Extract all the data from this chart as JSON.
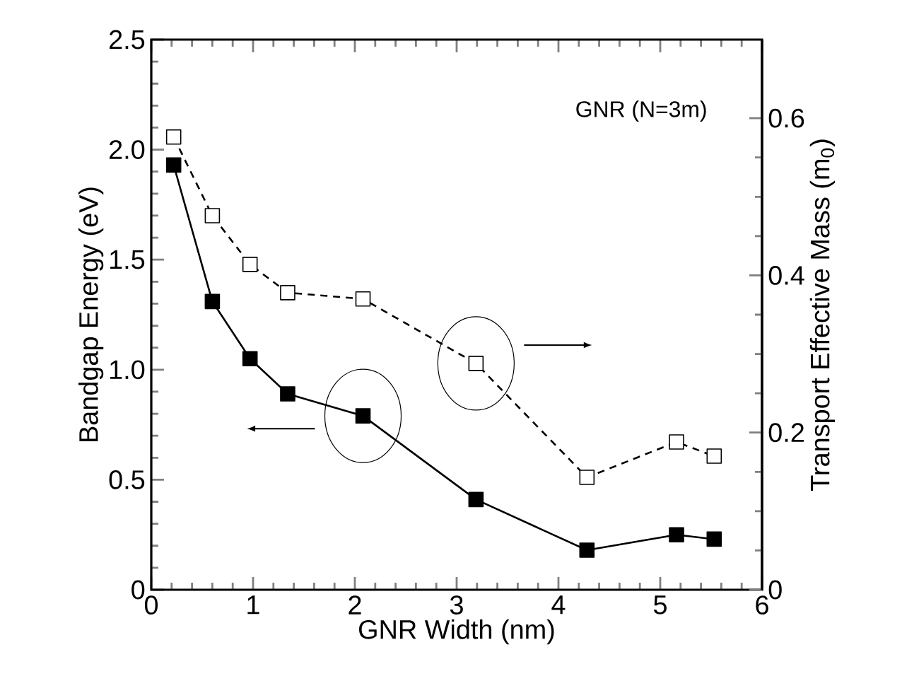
{
  "chart_data": {
    "type": "line",
    "xlabel": "GNR Width (nm)",
    "ylabel": "Bandgap Energy (eV)",
    "y2label": "Transport Effective Mass (m$_{0}$)",
    "annotations": [
      "GNR (N=3m)"
    ],
    "xlim": [
      0,
      6
    ],
    "xticks": [
      0,
      1,
      2,
      3,
      4,
      5,
      6
    ],
    "ylim": [
      0,
      2.5
    ],
    "yticks": [
      0,
      {
        "value": 0.5,
        "label": "0.5"
      },
      {
        "value": 1,
        "label": "1.0"
      },
      {
        "value": 1.5,
        "label": "1.5"
      },
      {
        "value": 2,
        "label": "2.0"
      },
      {
        "value": 2.5,
        "label": "2.5"
      }
    ],
    "y2lim": [
      0,
      0.7
    ],
    "y2ticks": [
      0,
      0.2,
      0.4,
      0.6
    ],
    "marker": "square",
    "series": [
      {
        "color": "#000000",
        "axis": "y",
        "line_style": "solid",
        "x": [
          0.22,
          0.6,
          0.97,
          1.34,
          2.08,
          3.19,
          4.28,
          5.16,
          5.53
        ],
        "values": [
          1.93,
          1.31,
          1.05,
          0.89,
          0.79,
          0.41,
          0.18,
          0.25,
          0.23
        ]
      },
      {
        "color": "#000000",
        "axis": "y2",
        "line_style": "dashed",
        "x": [
          0.22,
          0.6,
          0.97,
          1.34,
          2.08,
          3.19,
          4.28,
          5.16,
          5.53
        ],
        "values": [
          0.576,
          0.476,
          0.414,
          0.378,
          0.37,
          0.288,
          0.143,
          0.188,
          0.17
        ]
      }
    ]
  }
}
